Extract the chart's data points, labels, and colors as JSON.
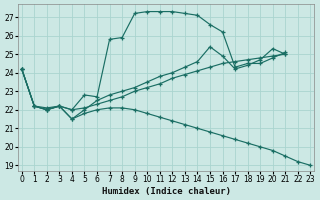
{
  "xlabel": "Humidex (Indice chaleur)",
  "xlim": [
    -0.3,
    23.3
  ],
  "ylim": [
    18.7,
    27.7
  ],
  "yticks": [
    19,
    20,
    21,
    22,
    23,
    24,
    25,
    26,
    27
  ],
  "xticks": [
    0,
    1,
    2,
    3,
    4,
    5,
    6,
    7,
    8,
    9,
    10,
    11,
    12,
    13,
    14,
    15,
    16,
    17,
    18,
    19,
    20,
    21,
    22,
    23
  ],
  "bg_color": "#cce8e4",
  "grid_color": "#aad4cf",
  "line_color": "#1a6e64",
  "curve1_x": [
    0,
    1,
    2,
    3,
    4,
    5,
    6,
    7,
    8,
    9,
    10,
    11,
    12,
    13,
    14,
    15,
    16,
    17,
    18,
    19,
    20,
    21
  ],
  "curve1_y": [
    24.2,
    22.2,
    22.0,
    22.2,
    22.0,
    22.8,
    22.7,
    25.8,
    25.9,
    27.2,
    27.3,
    27.3,
    27.3,
    27.2,
    27.1,
    26.6,
    26.2,
    24.3,
    24.5,
    24.5,
    24.8,
    25.1
  ],
  "curve2_x": [
    0,
    1,
    2,
    3,
    4,
    5,
    6,
    7,
    8,
    9,
    10,
    11,
    12,
    13,
    14,
    15,
    16,
    17,
    18,
    19,
    20,
    21
  ],
  "curve2_y": [
    24.2,
    22.2,
    22.1,
    22.2,
    22.0,
    22.1,
    22.3,
    22.5,
    22.7,
    23.0,
    23.2,
    23.4,
    23.7,
    23.9,
    24.1,
    24.3,
    24.5,
    24.6,
    24.7,
    24.8,
    24.9,
    25.0
  ],
  "curve3_x": [
    0,
    1,
    2,
    3,
    4,
    5,
    6,
    7,
    8,
    9,
    10,
    11,
    12,
    13,
    14,
    15,
    16,
    17,
    18,
    19,
    20,
    21,
    22,
    23
  ],
  "curve3_y": [
    24.2,
    22.2,
    22.0,
    22.2,
    21.5,
    21.8,
    22.0,
    22.1,
    22.1,
    22.0,
    21.8,
    21.6,
    21.4,
    21.2,
    21.0,
    20.8,
    20.6,
    20.4,
    20.2,
    20.0,
    19.8,
    19.5,
    19.2,
    19.0
  ],
  "curve4_x": [
    0,
    1,
    2,
    3,
    4,
    5,
    6,
    7,
    8,
    9,
    10,
    11,
    12,
    13,
    14,
    15,
    16,
    17,
    18,
    19,
    20,
    21
  ],
  "curve4_y": [
    24.2,
    22.2,
    22.0,
    22.2,
    21.5,
    22.0,
    22.5,
    22.8,
    23.0,
    23.2,
    23.5,
    23.8,
    24.0,
    24.3,
    24.6,
    25.4,
    24.9,
    24.2,
    24.4,
    24.7,
    25.3,
    25.0
  ]
}
